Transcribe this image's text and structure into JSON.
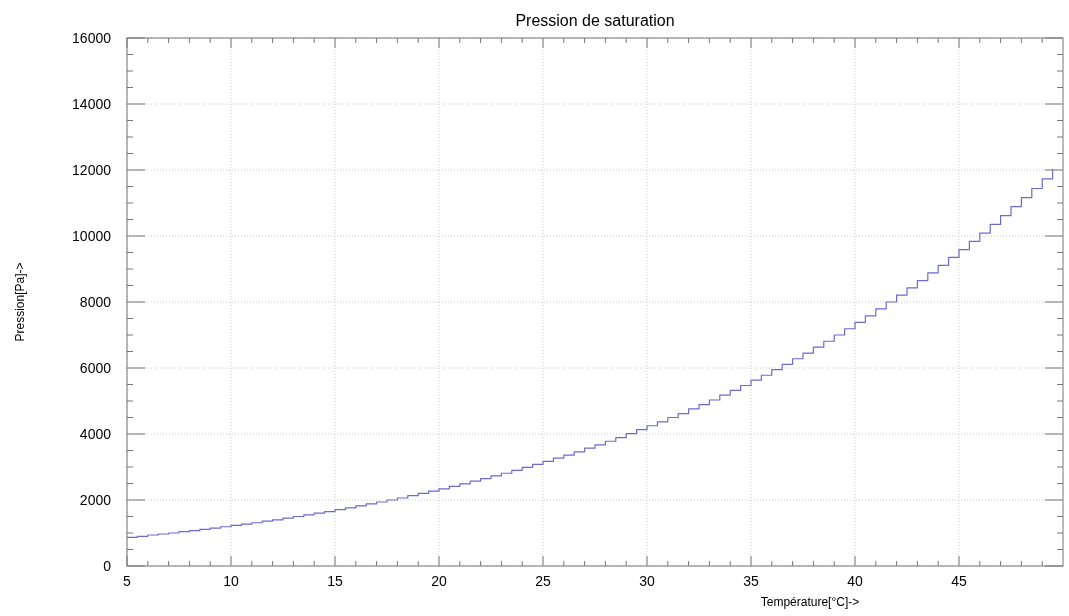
{
  "chart_data": {
    "type": "step",
    "title": "Pression de saturation",
    "xlabel": "Température[°C]->",
    "ylabel": "Pression[Pa]->",
    "x": [
      5,
      5.5,
      6,
      6.5,
      7,
      7.5,
      8,
      8.5,
      9,
      9.5,
      10,
      10.5,
      11,
      11.5,
      12,
      12.5,
      13,
      13.5,
      14,
      14.5,
      15,
      15.5,
      16,
      16.5,
      17,
      17.5,
      18,
      18.5,
      19,
      19.5,
      20,
      20.5,
      21,
      21.5,
      22,
      22.5,
      23,
      23.5,
      24,
      24.5,
      25,
      25.5,
      26,
      26.5,
      27,
      27.5,
      28,
      28.5,
      29,
      29.5,
      30,
      30.5,
      31,
      31.5,
      32,
      32.5,
      33,
      33.5,
      34,
      34.5,
      35,
      35.5,
      36,
      36.5,
      37,
      37.5,
      38,
      38.5,
      39,
      39.5,
      40,
      40.5,
      41,
      41.5,
      42,
      42.5,
      43,
      43.5,
      44,
      44.5,
      45,
      45.5,
      46,
      46.5,
      47,
      47.5,
      48,
      48.5,
      49,
      49.5
    ],
    "series": [
      {
        "color": "#6a6ad0",
        "values": [
          870,
          900,
          940,
          970,
          1000,
          1040,
          1070,
          1110,
          1150,
          1190,
          1230,
          1270,
          1310,
          1360,
          1400,
          1450,
          1500,
          1550,
          1600,
          1650,
          1710,
          1760,
          1820,
          1880,
          1940,
          2000,
          2060,
          2130,
          2200,
          2270,
          2340,
          2410,
          2490,
          2570,
          2650,
          2730,
          2810,
          2900,
          2990,
          3080,
          3170,
          3270,
          3360,
          3460,
          3570,
          3670,
          3780,
          3890,
          4010,
          4130,
          4250,
          4370,
          4500,
          4620,
          4760,
          4890,
          5030,
          5180,
          5320,
          5470,
          5630,
          5780,
          5950,
          6110,
          6280,
          6450,
          6630,
          6810,
          7000,
          7190,
          7380,
          7580,
          7790,
          8000,
          8210,
          8430,
          8650,
          8880,
          9110,
          9350,
          9590,
          9840,
          10090,
          10350,
          10620,
          10890,
          11160,
          11440,
          11730,
          12020
        ]
      }
    ],
    "xlim": [
      5,
      50
    ],
    "xticks": [
      5,
      {
        "value": 6,
        "label": null
      },
      {
        "value": 7,
        "label": null
      },
      {
        "value": 8,
        "label": null
      },
      {
        "value": 9,
        "label": null
      },
      10,
      {
        "value": 11,
        "label": null
      },
      {
        "value": 12,
        "label": null
      },
      {
        "value": 13,
        "label": null
      },
      {
        "value": 14,
        "label": null
      },
      15,
      {
        "value": 16,
        "label": null
      },
      {
        "value": 17,
        "label": null
      },
      {
        "value": 18,
        "label": null
      },
      {
        "value": 19,
        "label": null
      },
      20,
      {
        "value": 21,
        "label": null
      },
      {
        "value": 22,
        "label": null
      },
      {
        "value": 23,
        "label": null
      },
      {
        "value": 24,
        "label": null
      },
      25,
      {
        "value": 26,
        "label": null
      },
      {
        "value": 27,
        "label": null
      },
      {
        "value": 28,
        "label": null
      },
      {
        "value": 29,
        "label": null
      },
      30,
      {
        "value": 31,
        "label": null
      },
      {
        "value": 32,
        "label": null
      },
      {
        "value": 33,
        "label": null
      },
      {
        "value": 34,
        "label": null
      },
      35,
      {
        "value": 36,
        "label": null
      },
      {
        "value": 37,
        "label": null
      },
      {
        "value": 38,
        "label": null
      },
      {
        "value": 39,
        "label": null
      },
      40,
      {
        "value": 41,
        "label": null
      },
      {
        "value": 42,
        "label": null
      },
      {
        "value": 43,
        "label": null
      },
      {
        "value": 44,
        "label": null
      },
      45,
      {
        "value": 46,
        "label": null
      },
      {
        "value": 47,
        "label": null
      },
      {
        "value": 48,
        "label": null
      },
      {
        "value": 49,
        "label": null
      }
    ],
    "ylim": [
      0,
      16000
    ],
    "yticks": [
      0,
      {
        "value": 500,
        "label": null
      },
      {
        "value": 1000,
        "label": null
      },
      {
        "value": 1500,
        "label": null
      },
      2000,
      {
        "value": 2500,
        "label": null
      },
      {
        "value": 3000,
        "label": null
      },
      {
        "value": 3500,
        "label": null
      },
      4000,
      {
        "value": 4500,
        "label": null
      },
      {
        "value": 5000,
        "label": null
      },
      {
        "value": 5500,
        "label": null
      },
      6000,
      {
        "value": 6500,
        "label": null
      },
      {
        "value": 7000,
        "label": null
      },
      {
        "value": 7500,
        "label": null
      },
      8000,
      {
        "value": 8500,
        "label": null
      },
      {
        "value": 9000,
        "label": null
      },
      {
        "value": 9500,
        "label": null
      },
      10000,
      {
        "value": 10500,
        "label": null
      },
      {
        "value": 11000,
        "label": null
      },
      {
        "value": 11500,
        "label": null
      },
      12000,
      {
        "value": 12500,
        "label": null
      },
      {
        "value": 13000,
        "label": null
      },
      {
        "value": 13500,
        "label": null
      },
      14000,
      {
        "value": 14500,
        "label": null
      },
      {
        "value": 15000,
        "label": null
      },
      {
        "value": 15500,
        "label": null
      },
      16000
    ],
    "grid": true,
    "marker": "none",
    "line_style": "solid"
  }
}
